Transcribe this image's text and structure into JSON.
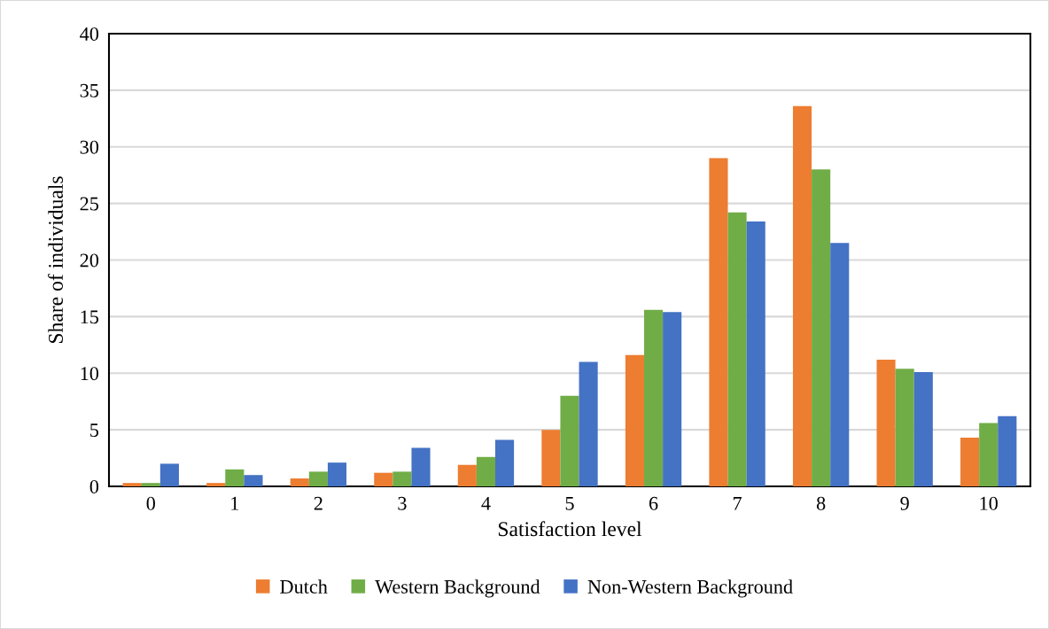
{
  "chart_data": {
    "type": "bar",
    "xlabel": "Satisfaction level",
    "ylabel": "Share of individuals",
    "categories": [
      "0",
      "1",
      "2",
      "3",
      "4",
      "5",
      "6",
      "7",
      "8",
      "9",
      "10"
    ],
    "series": [
      {
        "name": "Dutch",
        "color": "#ed7d31",
        "values": [
          0.3,
          0.3,
          0.7,
          1.2,
          1.9,
          5.0,
          11.6,
          29.0,
          33.6,
          11.2,
          4.3
        ]
      },
      {
        "name": "Western Background",
        "color": "#70ad47",
        "values": [
          0.3,
          1.5,
          1.3,
          1.3,
          2.6,
          8.0,
          15.6,
          24.2,
          28.0,
          10.4,
          5.6
        ]
      },
      {
        "name": "Non-Western Background",
        "color": "#4472c4",
        "values": [
          2.0,
          1.0,
          2.1,
          3.4,
          4.1,
          11.0,
          15.4,
          23.4,
          21.5,
          10.1,
          6.2
        ]
      }
    ],
    "ylim": [
      0,
      40
    ],
    "yticks": [
      0,
      5,
      10,
      15,
      20,
      25,
      30,
      35,
      40
    ],
    "grid": "y",
    "legend": "bottom"
  }
}
